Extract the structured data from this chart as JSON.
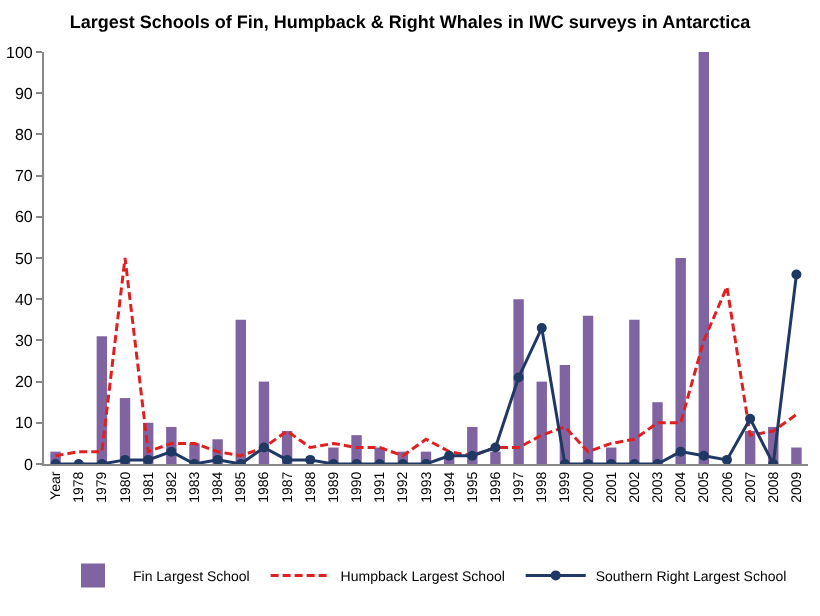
{
  "chart_data": {
    "type": "bar",
    "title": "Largest Schools of Fin, Humpback & Right Whales in IWC surveys in Antarctica",
    "categories": [
      "Year",
      "1978",
      "1979",
      "1980",
      "1981",
      "1982",
      "1983",
      "1984",
      "1985",
      "1986",
      "1987",
      "1988",
      "1989",
      "1990",
      "1991",
      "1992",
      "1993",
      "1994",
      "1995",
      "1996",
      "1997",
      "1998",
      "1999",
      "2000",
      "2001",
      "2002",
      "2003",
      "2004",
      "2005",
      "2006",
      "2007",
      "2008",
      "2009"
    ],
    "series": [
      {
        "name": "Fin Largest School",
        "color": "#8064a2",
        "values": [
          3,
          0,
          31,
          16,
          10,
          9,
          5,
          6,
          35,
          20,
          8,
          null,
          4,
          7,
          4,
          3,
          3,
          2,
          9,
          3,
          40,
          20,
          24,
          36,
          4,
          35,
          15,
          50,
          100,
          null,
          8,
          9,
          4
        ]
      },
      {
        "name": "Humpback Largest School",
        "type": "line",
        "line_style": "dashed",
        "marker": "none",
        "color": "#e02020",
        "values": [
          2,
          3,
          3,
          50,
          3,
          5,
          5,
          3,
          2,
          4,
          8,
          4,
          5,
          4,
          4,
          2,
          6,
          3,
          2,
          4,
          4,
          7,
          9,
          3,
          5,
          6,
          10,
          10,
          30,
          43,
          7,
          8,
          12
        ]
      },
      {
        "name": "Southern Right Largest School",
        "type": "line",
        "line_style": "solid",
        "marker": "circle",
        "color": "#1f3864",
        "values": [
          0,
          0,
          0,
          1,
          1,
          3,
          0,
          1,
          0,
          4,
          1,
          1,
          0,
          0,
          0,
          0,
          0,
          2,
          2,
          4,
          21,
          33,
          0,
          0,
          0,
          0,
          0,
          3,
          2,
          1,
          11,
          0,
          46
        ]
      }
    ],
    "ylim": [
      0,
      100
    ],
    "yticks": [
      0,
      10,
      20,
      30,
      40,
      50,
      60,
      70,
      80,
      90,
      100
    ],
    "grid": false,
    "legend": "bottom"
  }
}
